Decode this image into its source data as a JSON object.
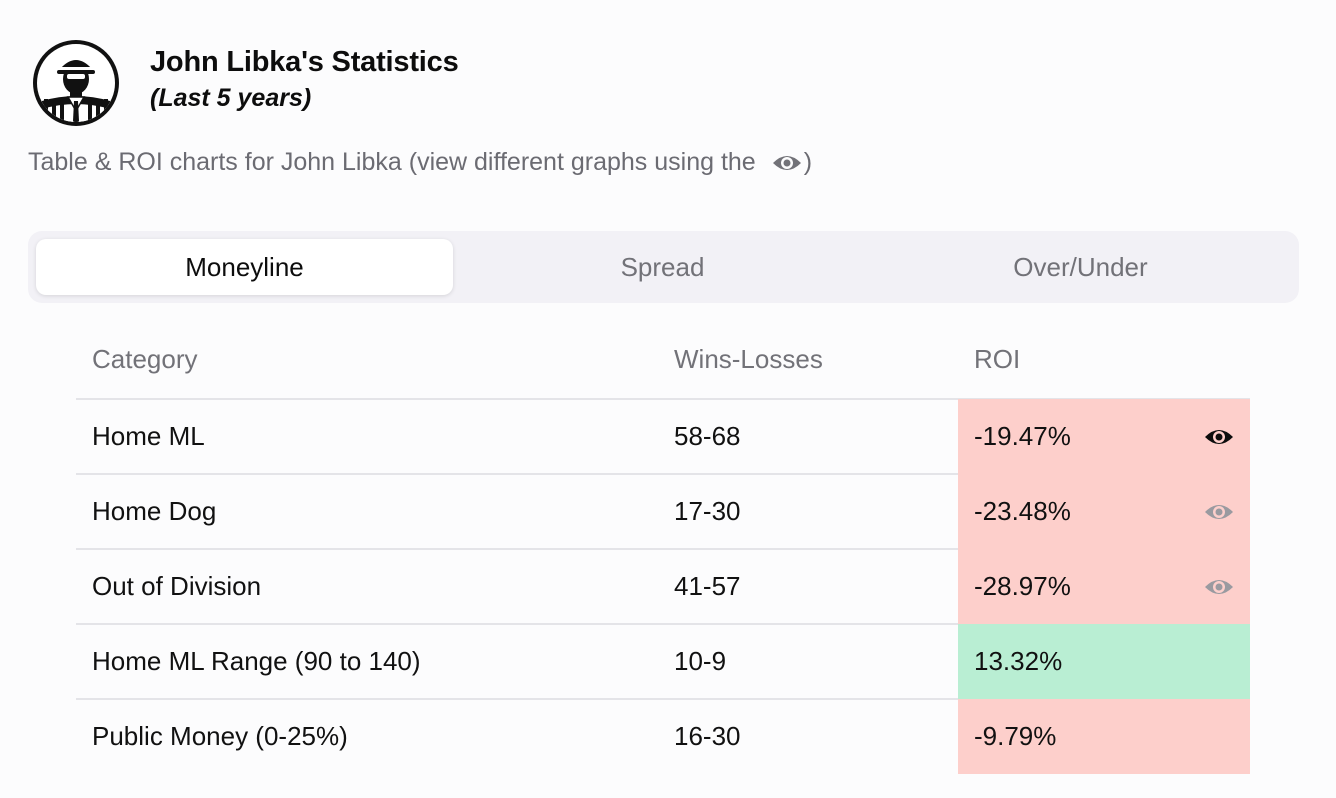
{
  "header": {
    "title": "John Libka's Statistics",
    "subtitle": "(Last 5 years)",
    "description": "Table & ROI charts for John Libka (view different graphs using the",
    "description_suffix": ")"
  },
  "tabs": [
    {
      "label": "Moneyline",
      "active": true
    },
    {
      "label": "Spread",
      "active": false
    },
    {
      "label": "Over/Under",
      "active": false
    }
  ],
  "table": {
    "headers": [
      "Category",
      "Wins-Losses",
      "ROI"
    ],
    "rows": [
      {
        "category": "Home ML",
        "record": "58-68",
        "roi": "-19.47%",
        "trend": "negative",
        "chart_icon": "eye-icon",
        "chart_selected": true
      },
      {
        "category": "Home Dog",
        "record": "17-30",
        "roi": "-23.48%",
        "trend": "negative",
        "chart_icon": "eye-icon",
        "chart_selected": false
      },
      {
        "category": "Out of Division",
        "record": "41-57",
        "roi": "-28.97%",
        "trend": "negative",
        "chart_icon": "eye-icon",
        "chart_selected": false
      },
      {
        "category": "Home ML Range (90 to 140)",
        "record": "10-9",
        "roi": "13.32%",
        "trend": "positive"
      },
      {
        "category": "Public Money (0-25%)",
        "record": "16-30",
        "roi": "-9.79%",
        "trend": "negative"
      }
    ]
  },
  "colors": {
    "negative_bg": "#fdcfcb",
    "positive_bg": "#b9eed3",
    "tab_bar_bg": "#f2f1f6",
    "muted_text": "#727278"
  }
}
